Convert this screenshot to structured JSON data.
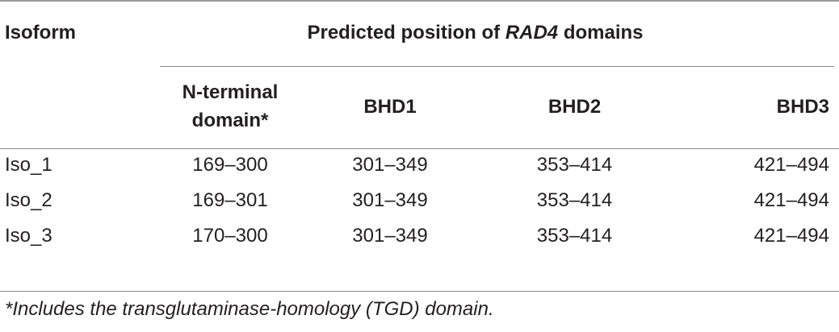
{
  "table": {
    "header": {
      "isoform": "Isoform",
      "group_prefix": "Predicted position of ",
      "group_gene": "RAD4",
      "group_suffix": " domains",
      "columns": [
        "N-terminal domain*",
        "BHD1",
        "BHD2",
        "BHD3"
      ]
    },
    "rows": [
      {
        "isoform": "Iso_1",
        "n_terminal": "169–300",
        "bhd1": "301–349",
        "bhd2": "353–414",
        "bhd3": "421–494"
      },
      {
        "isoform": "Iso_2",
        "n_terminal": "169–301",
        "bhd1": "301–349",
        "bhd2": "353–414",
        "bhd3": "421–494"
      },
      {
        "isoform": "Iso_3",
        "n_terminal": "170–300",
        "bhd1": "301–349",
        "bhd2": "353–414",
        "bhd3": "421–494"
      }
    ],
    "footnote": "*Includes the transglutaminase-homology (TGD) domain."
  }
}
